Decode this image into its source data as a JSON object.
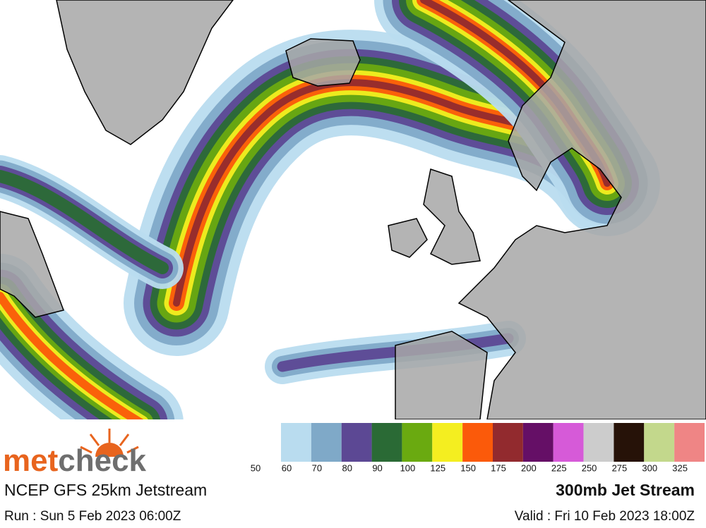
{
  "brand": {
    "part1": "met",
    "part2": "check"
  },
  "model": "NCEP GFS 25km Jetstream",
  "run": "Run : Sun 5 Feb 2023 06:00Z",
  "product": "300mb Jet Stream",
  "valid": "Valid : Fri 10 Feb 2023 18:00Z",
  "legend": {
    "labels": [
      50,
      60,
      70,
      80,
      90,
      100,
      125,
      150,
      175,
      200,
      225,
      250,
      275,
      300,
      325
    ],
    "colors": [
      "#b9dcef",
      "#7fa9c8",
      "#5c4894",
      "#2a6a35",
      "#6aaa10",
      "#f4ee20",
      "#fb5a0a",
      "#922a2e",
      "#650f66",
      "#d65ad8",
      "#cccccc",
      "#261208",
      "#c3d88c",
      "#ef8585"
    ]
  }
}
